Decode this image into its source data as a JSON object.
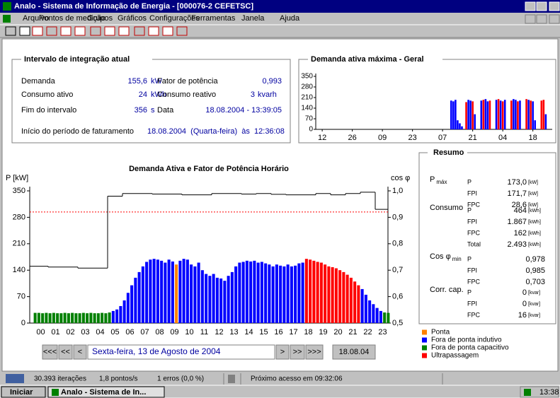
{
  "window": {
    "title": "Analo - Sistema de Informação de Energia - [000076-2  CEFETSC]",
    "menu": [
      "Arquivo",
      "Pontos de medição",
      "Grupos",
      "Gráficos",
      "Configurações",
      "Ferramentas",
      "Janela",
      "Ajuda"
    ]
  },
  "current_interval": {
    "title": "Intervalo de integração atual",
    "left": [
      {
        "label": "Demanda",
        "value": "155,6",
        "unit": "kW"
      },
      {
        "label": "Consumo ativo",
        "value": "24",
        "unit": "kWh"
      },
      {
        "label": "Fim do intervalo",
        "value": "356",
        "unit": "s"
      }
    ],
    "right": [
      {
        "label": "Fator de potência",
        "value": "0,993"
      },
      {
        "label": "Consumo reativo",
        "value": "3",
        "unit": "kvarh"
      },
      {
        "label": "Data",
        "value": "18.08.2004 - 13:39:05"
      }
    ],
    "billing": {
      "label": "Início do período de faturamento",
      "value": "18.08.2004  (Quarta-feira)  às  12:36:08"
    }
  },
  "max_demand_chart": {
    "type": "bar",
    "title": "Demanda ativa máxima - Geral",
    "x": [
      60,
      61,
      62,
      63,
      64,
      65,
      67,
      68,
      69,
      70,
      71,
      74,
      75,
      76,
      77,
      78,
      81,
      82,
      83,
      84,
      85,
      88,
      89,
      90,
      91,
      92,
      95,
      96,
      97,
      98,
      99,
      102,
      103,
      104
    ],
    "values": [
      190,
      185,
      195,
      60,
      40,
      20,
      180,
      195,
      190,
      185,
      100,
      190,
      195,
      200,
      185,
      190,
      195,
      200,
      190,
      185,
      195,
      190,
      200,
      195,
      185,
      190,
      200,
      195,
      190,
      185,
      60,
      190,
      195,
      100
    ],
    "colors": [
      "#0000ff",
      "#0000ff",
      "#0000ff",
      "#0000ff",
      "#0000ff",
      "#0000ff",
      "#ff0000",
      "#0000ff",
      "#0000ff",
      "#ff0000",
      "#0000ff",
      "#0000ff",
      "#ff0000",
      "#0000ff",
      "#0000ff",
      "#ff0000",
      "#0000ff",
      "#ff0000",
      "#0000ff",
      "#ff0000",
      "#0000ff",
      "#ff0000",
      "#0000ff",
      "#0000ff",
      "#ff0000",
      "#0000ff",
      "#ff0000",
      "#0000ff",
      "#ff0000",
      "#0000ff",
      "#0000ff",
      "#ff0000",
      "#ff0000",
      "#0000ff"
    ],
    "xlim": [
      -3,
      107
    ],
    "xticks": [
      {
        "value": 0,
        "label": "12"
      },
      {
        "value": 14,
        "label": "26"
      },
      {
        "value": 28,
        "label": "09"
      },
      {
        "value": 42,
        "label": "23"
      },
      {
        "value": 56,
        "label": "07"
      },
      {
        "value": 70,
        "label": "21"
      },
      {
        "value": 84,
        "label": "04"
      },
      {
        "value": 98,
        "label": "18"
      }
    ],
    "ylim": [
      0,
      350
    ],
    "yticks": [
      0,
      70,
      140,
      210,
      280,
      350
    ]
  },
  "hourly_chart": {
    "type": "bar",
    "title": "Demanda Ativa e Fator de Potência Horário",
    "y_label": "P [kW]",
    "y2_label": "cos φ",
    "categories": [
      "00",
      "01",
      "02",
      "03",
      "04",
      "05",
      "06",
      "07",
      "08",
      "09",
      "10",
      "11",
      "12",
      "13",
      "14",
      "15",
      "16",
      "17",
      "18",
      "19",
      "20",
      "21",
      "22",
      "23"
    ],
    "bars": {
      "values": [
        27,
        27,
        26,
        27,
        26,
        27,
        26,
        26,
        27,
        26,
        27,
        26,
        26,
        27,
        26,
        27,
        26,
        26,
        27,
        26,
        28,
        32,
        36,
        45,
        60,
        80,
        100,
        120,
        135,
        150,
        162,
        168,
        170,
        168,
        165,
        160,
        168,
        163,
        155,
        165,
        170,
        168,
        155,
        150,
        160,
        140,
        130,
        125,
        130,
        120,
        118,
        112,
        125,
        135,
        150,
        160,
        162,
        165,
        163,
        165,
        160,
        162,
        158,
        155,
        150,
        155,
        152,
        150,
        155,
        150,
        152,
        158,
        160,
        170,
        168,
        165,
        162,
        160,
        155,
        150,
        148,
        145,
        140,
        135,
        128,
        120,
        110,
        100,
        90,
        75,
        60,
        50,
        40,
        32,
        28,
        27
      ],
      "colors": [
        "#008000",
        "#008000",
        "#008000",
        "#008000",
        "#008000",
        "#008000",
        "#008000",
        "#008000",
        "#008000",
        "#008000",
        "#008000",
        "#008000",
        "#008000",
        "#008000",
        "#008000",
        "#008000",
        "#008000",
        "#008000",
        "#008000",
        "#008000",
        "#008000",
        "#0000ff",
        "#0000ff",
        "#0000ff",
        "#0000ff",
        "#0000ff",
        "#0000ff",
        "#0000ff",
        "#0000ff",
        "#0000ff",
        "#0000ff",
        "#0000ff",
        "#0000ff",
        "#0000ff",
        "#0000ff",
        "#0000ff",
        "#0000ff",
        "#0000ff",
        "#ff8000",
        "#0000ff",
        "#0000ff",
        "#0000ff",
        "#0000ff",
        "#0000ff",
        "#0000ff",
        "#0000ff",
        "#0000ff",
        "#0000ff",
        "#0000ff",
        "#0000ff",
        "#0000ff",
        "#0000ff",
        "#0000ff",
        "#0000ff",
        "#0000ff",
        "#0000ff",
        "#0000ff",
        "#0000ff",
        "#0000ff",
        "#0000ff",
        "#0000ff",
        "#0000ff",
        "#0000ff",
        "#0000ff",
        "#0000ff",
        "#0000ff",
        "#0000ff",
        "#0000ff",
        "#0000ff",
        "#0000ff",
        "#0000ff",
        "#0000ff",
        "#0000ff",
        "#ff0000",
        "#ff0000",
        "#ff0000",
        "#ff0000",
        "#ff0000",
        "#ff0000",
        "#ff0000",
        "#ff0000",
        "#ff0000",
        "#ff0000",
        "#ff0000",
        "#ff0000",
        "#ff0000",
        "#ff0000",
        "#ff0000",
        "#0000ff",
        "#0000ff",
        "#0000ff",
        "#0000ff",
        "#0000ff",
        "#0000ff",
        "#008000",
        "#008000"
      ]
    },
    "line": {
      "values": [
        0.715,
        0.712,
        0.712,
        0.708,
        0.708,
        0.98,
        0.99,
        0.99,
        0.988,
        0.988,
        0.985,
        0.985,
        0.99,
        0.99,
        0.988,
        0.99,
        0.987,
        0.985,
        0.985,
        0.99,
        0.985,
        0.99,
        0.995,
        0.93
      ],
      "color": "#000000",
      "axis": "y2"
    },
    "reference": {
      "value": 0.92,
      "axis": "y2",
      "color": "#ff0000"
    },
    "ylim": [
      0,
      350
    ],
    "yticks": [
      0,
      70,
      140,
      210,
      280,
      350
    ],
    "y2lim": [
      0.5,
      1.0
    ],
    "y2ticks": [
      {
        "value": 0.5,
        "label": "0,5"
      },
      {
        "value": 0.6,
        "label": "0,6"
      },
      {
        "value": 0.7,
        "label": "0,7"
      },
      {
        "value": 0.8,
        "label": "0,8"
      },
      {
        "value": 0.9,
        "label": "0,9"
      },
      {
        "value": 1.0,
        "label": "1,0"
      }
    ]
  },
  "navigation": {
    "back": [
      "<<<",
      "<<",
      "<"
    ],
    "date": "Sexta-feira, 13 de Agosto de 2004",
    "forward": [
      ">",
      ">>",
      ">>>"
    ],
    "today": "18.08.04"
  },
  "summary": {
    "title": "Resumo",
    "groups": [
      {
        "label": "P",
        "sub": "máx",
        "rows": [
          {
            "name": "P",
            "value": "173,0",
            "unit": "[kW]"
          },
          {
            "name": "FPI",
            "value": "171,7",
            "unit": "[kW]"
          },
          {
            "name": "FPC",
            "value": "28,6",
            "unit": "[kW]"
          }
        ]
      },
      {
        "label": "Consumo",
        "rows": [
          {
            "name": "P",
            "value": "464",
            "unit": "[kWh]"
          },
          {
            "name": "FPI",
            "value": "1.867",
            "unit": "[kWh]"
          },
          {
            "name": "FPC",
            "value": "162",
            "unit": "[kWh]"
          },
          {
            "name": "Total",
            "value": "2.493",
            "unit": "[kWh]"
          }
        ]
      },
      {
        "label": "Cos φ",
        "sub": "min",
        "rows": [
          {
            "name": "P",
            "value": "0,978"
          },
          {
            "name": "FPI",
            "value": "0,985"
          },
          {
            "name": "FPC",
            "value": "0,703"
          }
        ]
      },
      {
        "label": "Corr. cap.",
        "rows": [
          {
            "name": "P",
            "value": "0",
            "unit": "[kvar]"
          },
          {
            "name": "FPI",
            "value": "0",
            "unit": "[kvar]"
          },
          {
            "name": "FPC",
            "value": "16",
            "unit": "[kvar]"
          }
        ]
      }
    ]
  },
  "legend": [
    {
      "name": "Ponta",
      "color": "#ff8000"
    },
    {
      "name": "Fora de ponta indutivo",
      "color": "#0000ff"
    },
    {
      "name": "Fora de ponta capacitivo",
      "color": "#008000"
    },
    {
      "name": "Ultrapassagem",
      "color": "#ff0000"
    }
  ],
  "status": [
    "30.393 iterações",
    "1,8 pontos/s",
    "1 erros (0,0 %)",
    "Próximo acesso em 09:32:06"
  ],
  "taskbar": {
    "start": "Iniciar",
    "task": "Analo - Sistema de In...",
    "clock": "13:38"
  }
}
